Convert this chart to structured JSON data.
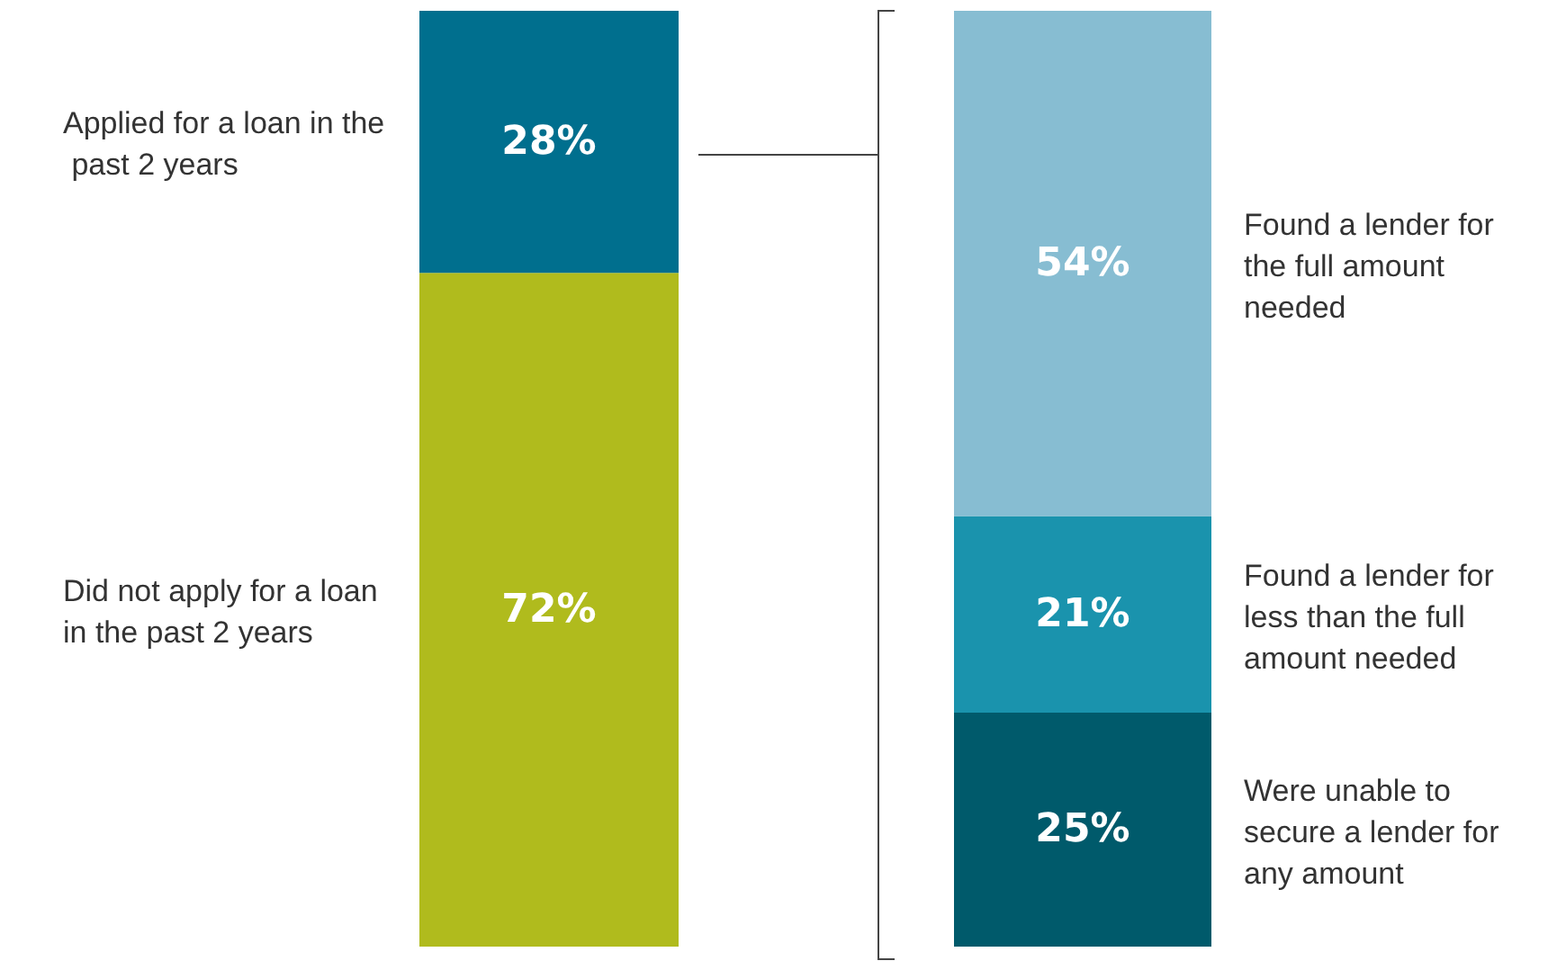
{
  "chart_data": {
    "type": "bar",
    "stacked": true,
    "legend": false,
    "categories": [
      null,
      null
    ],
    "series": [
      {
        "name": "Did not apply for a loan in the past 2 years",
        "color": "#b0bb1d",
        "values": [
          72,
          null
        ],
        "value_labels": [
          "72%",
          null
        ]
      },
      {
        "name": "Applied for a loan in the past 2 years",
        "color": "#006f8e",
        "values": [
          28,
          null
        ],
        "value_labels": [
          "28%",
          null
        ]
      },
      {
        "name": "Were unable to secure a lender for any amount",
        "color": "#005a6b",
        "values": [
          null,
          25
        ],
        "value_labels": [
          null,
          "25%"
        ]
      },
      {
        "name": "Found a lender for less than the full amount needed",
        "color": "#1a93ad",
        "values": [
          null,
          21
        ],
        "value_labels": [
          null,
          "21%"
        ]
      },
      {
        "name": "Found a lender for the full amount needed",
        "color": "#87bdd2",
        "values": [
          null,
          54
        ],
        "value_labels": [
          null,
          "54%"
        ]
      }
    ]
  }
}
